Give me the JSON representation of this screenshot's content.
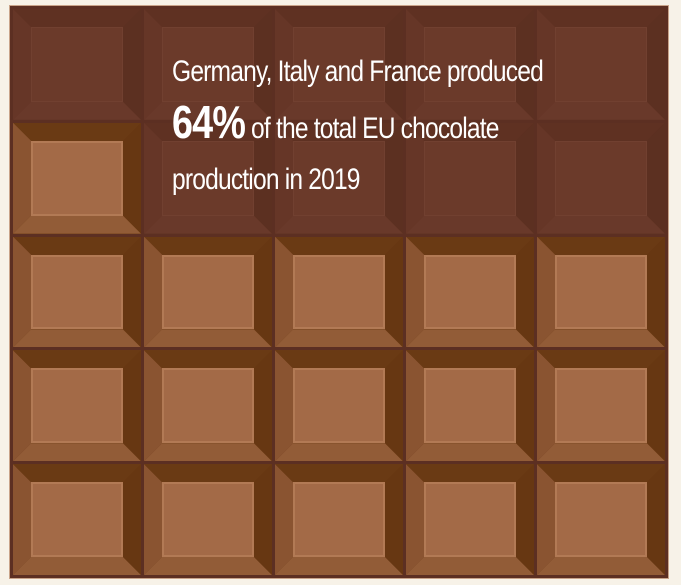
{
  "infographic": {
    "headline": {
      "line1": "Germany, Italy and France produced",
      "highlight": "64%",
      "line2_rest": " of the total EU chocolate",
      "line3": "production in 2019"
    },
    "chocolate_bar": {
      "rows": 5,
      "columns": 5,
      "dark_tiles": [
        [
          0,
          0
        ],
        [
          0,
          1
        ],
        [
          0,
          2
        ],
        [
          0,
          3
        ],
        [
          0,
          4
        ],
        [
          1,
          1
        ],
        [
          1,
          2
        ],
        [
          1,
          3
        ],
        [
          1,
          4
        ]
      ]
    },
    "colors": {
      "background": "#f7f2e8",
      "light_tile_face": "#a36a47",
      "dark_tile_face": "#6b3a2a",
      "groove": "#5c2f22",
      "text": "#ffffff"
    }
  }
}
